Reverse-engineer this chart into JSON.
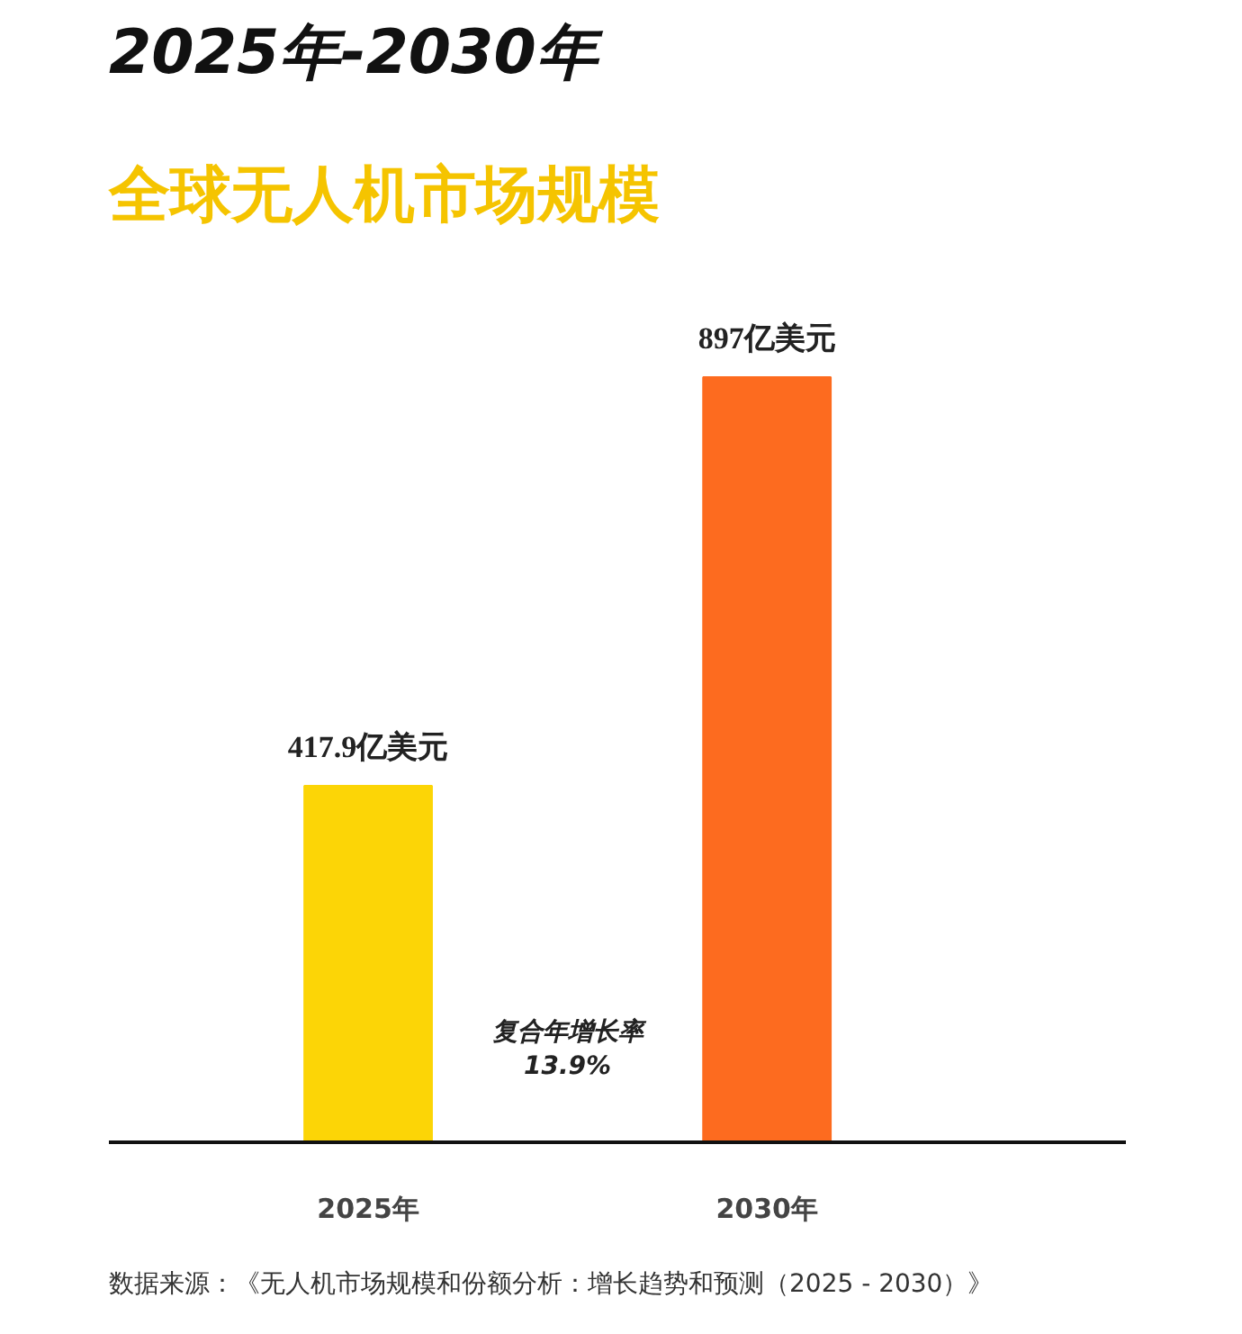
{
  "chart_data": {
    "type": "bar",
    "title": "2025年-2030年",
    "subtitle": "全球无人机市场规模",
    "categories": [
      "2025年",
      "2030年"
    ],
    "values": [
      417.9,
      897
    ],
    "colors": [
      "#fcd506",
      "#fd6b1f"
    ],
    "value_labels": [
      "417.9亿美元",
      "897亿美元"
    ],
    "annotations": [
      "复合年增长率\n13.9%",
      "数据来源：《无人机市场规模和份额分析：增长趋势和预测（2025 - 2030）》"
    ],
    "grid": false
  }
}
